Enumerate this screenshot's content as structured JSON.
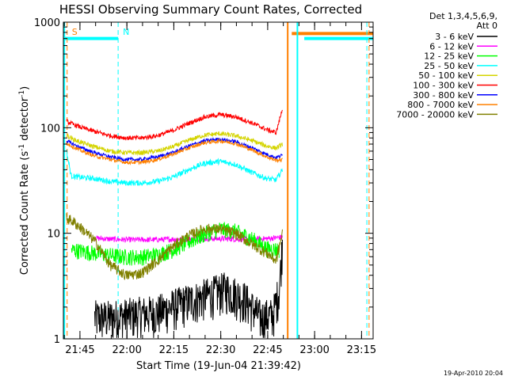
{
  "chart_data": {
    "type": "line",
    "title": "HESSI Observing Summary Count Rates, Corrected",
    "xlabel": "Start Time (19-Jun-04 21:39:42)",
    "ylabel": "Corrected Count Rate (s",
    "ylabel_sup1": "-1",
    "ylabel_mid": " detector",
    "ylabel_sup2": "-1",
    "ylabel_end": ")",
    "y_scale": "log",
    "ylim": [
      1,
      1000
    ],
    "x_units": "minutes after 21:39:42",
    "xlim": [
      0,
      99
    ],
    "x_ticks": [
      {
        "label": "21:45",
        "x": 5.3
      },
      {
        "label": "22:00",
        "x": 20.3
      },
      {
        "label": "22:15",
        "x": 35.3
      },
      {
        "label": "22:30",
        "x": 50.3
      },
      {
        "label": "22:45",
        "x": 65.3
      },
      {
        "label": "23:00",
        "x": 80.3
      },
      {
        "label": "23:15",
        "x": 95.3
      }
    ],
    "y_ticks": [
      {
        "label": "1",
        "y": 1
      },
      {
        "label": "10",
        "y": 10
      },
      {
        "label": "100",
        "y": 100
      },
      {
        "label": "1000",
        "y": 1000
      }
    ],
    "legend_header": [
      "Det 1,3,4,5,6,9,",
      "Att 0"
    ],
    "legend_position": "right",
    "series": [
      {
        "name": "3 - 6 keV",
        "color": "#000000",
        "x": [
          10,
          15,
          22,
          30,
          38,
          46,
          52,
          58,
          63,
          67,
          69,
          70
        ],
        "y": [
          1.6,
          1.6,
          1.7,
          1.8,
          2.2,
          2.6,
          3.0,
          2.4,
          1.6,
          1.7,
          3.0,
          8.0
        ]
      },
      {
        "name": "6 - 12 keV",
        "color": "#ff00ff",
        "x": [
          10,
          15,
          20,
          25,
          30,
          35,
          40,
          45,
          50,
          55,
          60,
          65,
          70
        ],
        "y": [
          9.0,
          8.8,
          8.7,
          8.7,
          8.7,
          8.8,
          8.8,
          8.9,
          8.9,
          8.8,
          8.8,
          8.9,
          9.2
        ]
      },
      {
        "name": "12 - 25 keV",
        "color": "#00ff00",
        "x": [
          2.5,
          6,
          10,
          15,
          20,
          25,
          30,
          35,
          40,
          45,
          50,
          55,
          60,
          65,
          69
        ],
        "y": [
          7.0,
          6.8,
          6.5,
          6.2,
          6.0,
          6.0,
          6.3,
          7.0,
          8.3,
          9.8,
          11.0,
          10.5,
          9.0,
          7.2,
          7.0
        ]
      },
      {
        "name": "25 - 50 keV",
        "color": "#00ffff",
        "x": [
          1,
          2.5,
          5,
          10,
          15,
          20,
          25,
          30,
          35,
          40,
          45,
          50,
          55,
          60,
          65,
          68,
          70
        ],
        "y": [
          60,
          35,
          34,
          33,
          31,
          30,
          30,
          31,
          34,
          40,
          46,
          48,
          45,
          38,
          33,
          32,
          40
        ]
      },
      {
        "name": "50 - 100 keV",
        "color": "#d4d400",
        "x": [
          1,
          3,
          6,
          10,
          15,
          20,
          25,
          30,
          35,
          40,
          45,
          50,
          55,
          60,
          65,
          68,
          70
        ],
        "y": [
          85,
          78,
          72,
          66,
          60,
          58,
          58,
          60,
          66,
          76,
          85,
          88,
          84,
          76,
          67,
          64,
          70
        ]
      },
      {
        "name": "100 - 300 keV",
        "color": "#ff0000",
        "x": [
          1,
          3,
          6,
          10,
          15,
          20,
          25,
          30,
          35,
          40,
          45,
          50,
          55,
          60,
          65,
          68,
          70
        ],
        "y": [
          115,
          108,
          100,
          92,
          84,
          80,
          80,
          84,
          94,
          110,
          126,
          133,
          127,
          112,
          96,
          90,
          150
        ]
      },
      {
        "name": "300 - 800 keV",
        "color": "#0000ff",
        "x": [
          1,
          3,
          6,
          10,
          15,
          20,
          25,
          30,
          35,
          40,
          45,
          50,
          55,
          60,
          65,
          68,
          70
        ],
        "y": [
          75,
          70,
          64,
          58,
          53,
          50,
          50,
          53,
          58,
          67,
          75,
          78,
          74,
          65,
          56,
          52,
          55
        ]
      },
      {
        "name": "800 - 7000 keV",
        "color": "#ff8000",
        "x": [
          1,
          3,
          6,
          10,
          15,
          20,
          25,
          30,
          35,
          40,
          45,
          50,
          55,
          60,
          65,
          68,
          70
        ],
        "y": [
          72,
          66,
          60,
          54,
          50,
          47,
          47,
          50,
          56,
          64,
          72,
          75,
          71,
          62,
          53,
          49,
          50
        ]
      },
      {
        "name": "7000 - 20000 keV",
        "color": "#808000",
        "x": [
          1,
          3,
          6,
          10,
          15,
          20,
          25,
          30,
          35,
          40,
          45,
          50,
          55,
          60,
          65,
          68,
          70
        ],
        "y": [
          14,
          13,
          11,
          8.5,
          5.0,
          4.0,
          4.2,
          5.5,
          7.5,
          9.5,
          11.0,
          11.0,
          10.0,
          8.0,
          6.5,
          5.5,
          10
        ]
      }
    ],
    "saturation_bars": [
      {
        "color": "#00ffff",
        "x_start": 0.3,
        "x_end": 17.5,
        "y": 700
      },
      {
        "color": "#00ffff",
        "x_start": 77.0,
        "x_end": 99.0,
        "y": 700
      },
      {
        "color": "#ff8000",
        "x_start": 73.0,
        "x_end": 99.0,
        "y": 780
      }
    ],
    "event_lines": [
      {
        "color": "#ff8000",
        "style": "dashed",
        "x": 1.2,
        "label": "S"
      },
      {
        "color": "#00ffff",
        "style": "dashed",
        "x": 17.5,
        "label": "N"
      },
      {
        "color": "#ff8000",
        "style": "solid",
        "x": 71.7,
        "label": ""
      },
      {
        "color": "#00ffff",
        "style": "solid",
        "x": 0.3,
        "label": ""
      },
      {
        "color": "#00ffff",
        "style": "solid",
        "x": 74.8,
        "label": ""
      },
      {
        "color": "#00ffff",
        "style": "dashed",
        "x": 97.0,
        "label": ""
      },
      {
        "color": "#ff8000",
        "style": "dashed",
        "x": 97.7,
        "label": ""
      }
    ],
    "grid": false
  },
  "timestamp": "19-Apr-2010 20:04"
}
